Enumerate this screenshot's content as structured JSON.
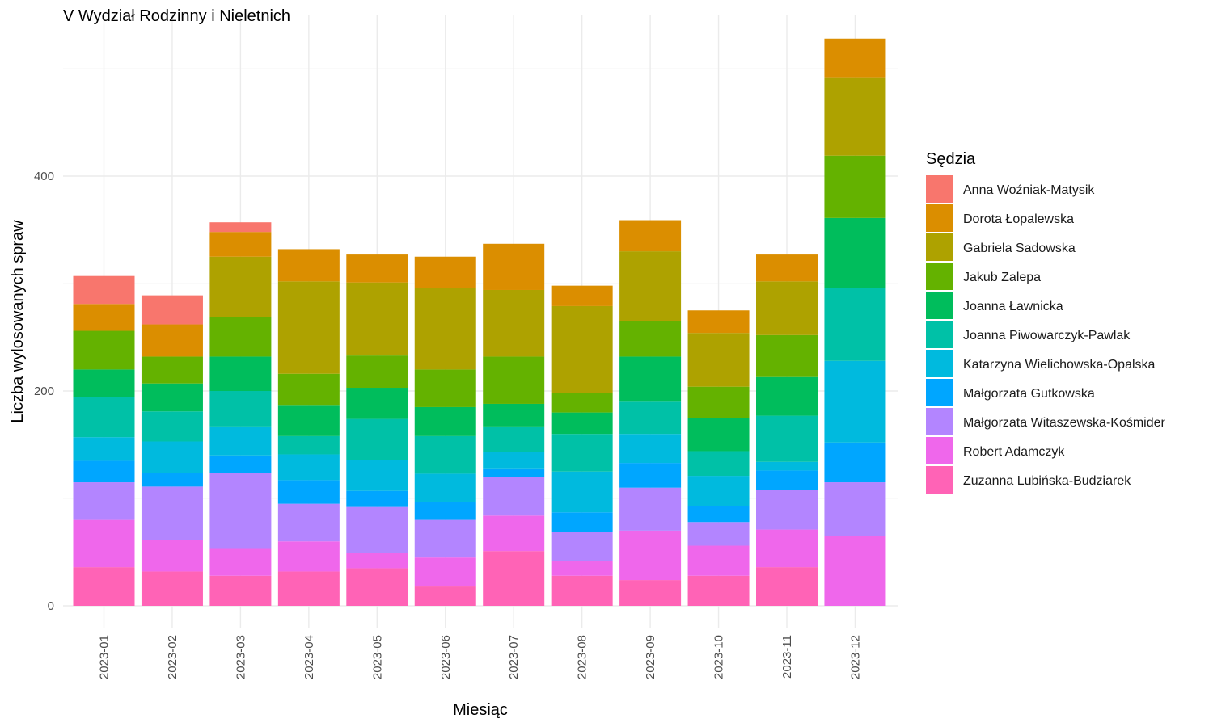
{
  "chart_data": {
    "type": "bar",
    "stacked": true,
    "title": "V Wydział Rodzinny i Nieletnich",
    "xlabel": "Miesiąc",
    "ylabel": "Liczba wylosowanych spraw",
    "legend_title": "Sędzia",
    "legend_position": "right",
    "grid": true,
    "ylim": [
      0,
      535
    ],
    "yticks": [
      0,
      200,
      400
    ],
    "categories": [
      "2023-01",
      "2023-02",
      "2023-03",
      "2023-04",
      "2023-05",
      "2023-06",
      "2023-07",
      "2023-08",
      "2023-09",
      "2023-10",
      "2023-11",
      "2023-12"
    ],
    "series": [
      {
        "name": "Anna Woźniak-Matysik",
        "color": "#F8766D",
        "values": [
          26,
          27,
          9,
          0,
          0,
          0,
          0,
          0,
          0,
          0,
          0,
          0
        ]
      },
      {
        "name": "Dorota Łopalewska",
        "color": "#DB8E00",
        "values": [
          25,
          30,
          23,
          30,
          26,
          29,
          43,
          19,
          29,
          21,
          25,
          36
        ]
      },
      {
        "name": "Gabriela Sadowska",
        "color": "#AEA200",
        "values": [
          0,
          0,
          56,
          86,
          68,
          76,
          62,
          81,
          65,
          50,
          50,
          73
        ]
      },
      {
        "name": "Jakub Zalepa",
        "color": "#64B200",
        "values": [
          36,
          25,
          37,
          29,
          30,
          35,
          44,
          18,
          33,
          29,
          39,
          58
        ]
      },
      {
        "name": "Joanna Ławnicka",
        "color": "#00BD5C",
        "values": [
          26,
          26,
          32,
          29,
          29,
          27,
          21,
          20,
          42,
          31,
          36,
          65
        ]
      },
      {
        "name": "Joanna Piwowarczyk-Pawlak",
        "color": "#00C1A7",
        "values": [
          37,
          28,
          33,
          17,
          38,
          35,
          24,
          35,
          30,
          23,
          43,
          68
        ]
      },
      {
        "name": "Katarzyna Wielichowska-Opalska",
        "color": "#00BADE",
        "values": [
          22,
          29,
          27,
          24,
          29,
          26,
          15,
          38,
          27,
          28,
          8,
          76
        ]
      },
      {
        "name": "Małgorzata Gutkowska",
        "color": "#00A6FF",
        "values": [
          20,
          13,
          16,
          22,
          15,
          17,
          8,
          18,
          23,
          15,
          18,
          37
        ]
      },
      {
        "name": "Małgorzata Witaszewska-Kośmider",
        "color": "#B385FF",
        "values": [
          35,
          50,
          71,
          35,
          43,
          35,
          36,
          27,
          40,
          22,
          37,
          50
        ]
      },
      {
        "name": "Robert Adamczyk",
        "color": "#EF67EB",
        "values": [
          44,
          29,
          25,
          28,
          14,
          27,
          33,
          14,
          46,
          28,
          35,
          65
        ]
      },
      {
        "name": "Zuzanna Lubińska-Budziarek",
        "color": "#FF63B6",
        "values": [
          36,
          32,
          28,
          32,
          35,
          18,
          51,
          28,
          24,
          28,
          36,
          0
        ]
      }
    ]
  }
}
